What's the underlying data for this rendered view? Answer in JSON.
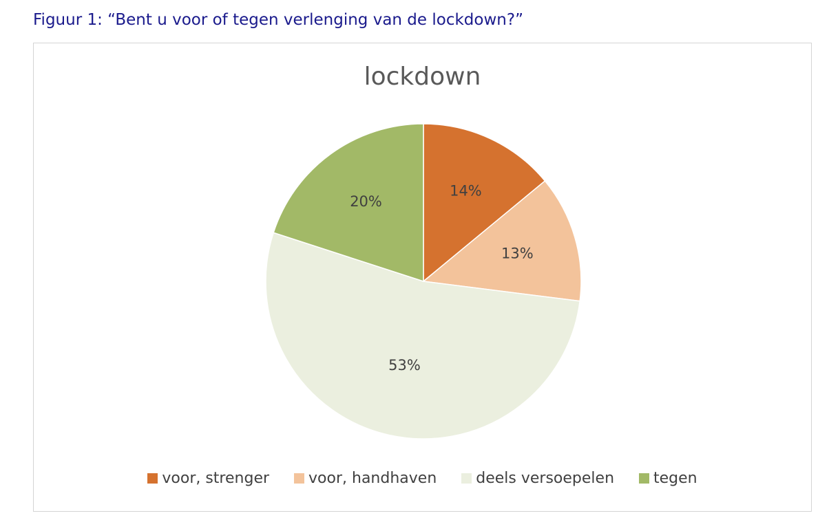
{
  "caption": "Figuur 1: “Bent u voor of tegen verlenging van de lockdown?”",
  "chart_data": {
    "type": "pie",
    "title": "lockdown",
    "categories": [
      "voor, strenger",
      "voor, handhaven",
      "deels versoepelen",
      "tegen"
    ],
    "values": [
      14,
      13,
      53,
      20
    ],
    "labels": [
      "14%",
      "13%",
      "53%",
      "20%"
    ],
    "colors": [
      "#D5722F",
      "#F3C39B",
      "#EBEFDF",
      "#A2B967"
    ],
    "start_angle": "12 o'clock",
    "direction": "clockwise",
    "legend_position": "bottom"
  }
}
